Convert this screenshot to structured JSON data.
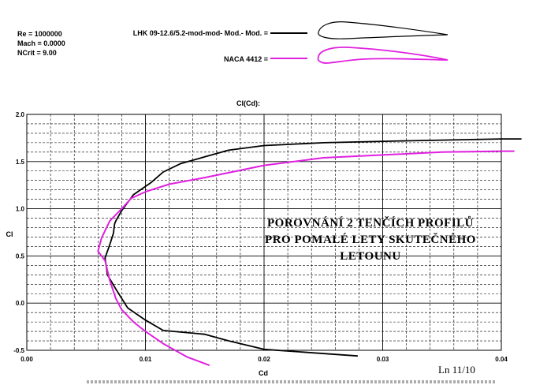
{
  "params": {
    "re": "Re = 1000000",
    "mach": "Mach = 0.0000",
    "ncrit": "NCrit = 9.00"
  },
  "legend": [
    {
      "label": "LHK 09-12.6/5.2-mod-mod- Mod.- Mod. =",
      "color": "#000000"
    },
    {
      "label": "NACA 4412 =",
      "color": "#e020e0"
    }
  ],
  "annotation": {
    "line1": "POROVNÁNÍ 2 TENČÍCH PROFILŮ",
    "line2": "PRO POMALÉ LETY SKUTEČNÉHO",
    "line3": "LETOUNU"
  },
  "page_note": "Ln 11/10",
  "chart_data": {
    "type": "line",
    "title": "Cl(Cd):",
    "xlabel": "Cd",
    "ylabel": "Cl",
    "xlim": [
      0.0,
      0.04
    ],
    "ylim": [
      -0.5,
      2.0
    ],
    "x_ticks": [
      "0.00",
      "0.01",
      "0.02",
      "0.03",
      "0.04"
    ],
    "y_ticks": [
      "2.0",
      "1.5",
      "1.0",
      "0.5",
      "0.0",
      "-0.5"
    ],
    "grid": true,
    "series": [
      {
        "name": "LHK 09-12.6/5.2-mod-mod- Mod.- Mod.",
        "color": "#000000",
        "points": [
          [
            0.0279,
            -0.56
          ],
          [
            0.02,
            -0.49
          ],
          [
            0.017,
            -0.4
          ],
          [
            0.015,
            -0.33
          ],
          [
            0.0115,
            -0.29
          ],
          [
            0.01,
            -0.18
          ],
          [
            0.0085,
            -0.05
          ],
          [
            0.0075,
            0.15
          ],
          [
            0.0068,
            0.3
          ],
          [
            0.0066,
            0.48
          ],
          [
            0.007,
            0.62
          ],
          [
            0.0073,
            0.74
          ],
          [
            0.0074,
            0.84
          ],
          [
            0.0075,
            0.87
          ],
          [
            0.008,
            0.98
          ],
          [
            0.009,
            1.15
          ],
          [
            0.0105,
            1.28
          ],
          [
            0.0115,
            1.39
          ],
          [
            0.013,
            1.48
          ],
          [
            0.015,
            1.55
          ],
          [
            0.017,
            1.62
          ],
          [
            0.02,
            1.67
          ],
          [
            0.025,
            1.7
          ],
          [
            0.032,
            1.72
          ],
          [
            0.04,
            1.74
          ],
          [
            0.0417,
            1.74
          ]
        ]
      },
      {
        "name": "NACA 4412",
        "color": "#e020e0",
        "points": [
          [
            0.0154,
            -0.66
          ],
          [
            0.0135,
            -0.57
          ],
          [
            0.0115,
            -0.43
          ],
          [
            0.01,
            -0.3
          ],
          [
            0.009,
            -0.2
          ],
          [
            0.008,
            -0.07
          ],
          [
            0.0075,
            0.05
          ],
          [
            0.007,
            0.24
          ],
          [
            0.0066,
            0.45
          ],
          [
            0.006,
            0.55
          ],
          [
            0.0063,
            0.69
          ],
          [
            0.007,
            0.87
          ],
          [
            0.008,
            1.0
          ],
          [
            0.0088,
            1.11
          ],
          [
            0.01,
            1.18
          ],
          [
            0.012,
            1.26
          ],
          [
            0.015,
            1.33
          ],
          [
            0.02,
            1.46
          ],
          [
            0.025,
            1.54
          ],
          [
            0.03,
            1.57
          ],
          [
            0.035,
            1.6
          ],
          [
            0.04,
            1.61
          ],
          [
            0.0411,
            1.61
          ]
        ]
      }
    ]
  }
}
